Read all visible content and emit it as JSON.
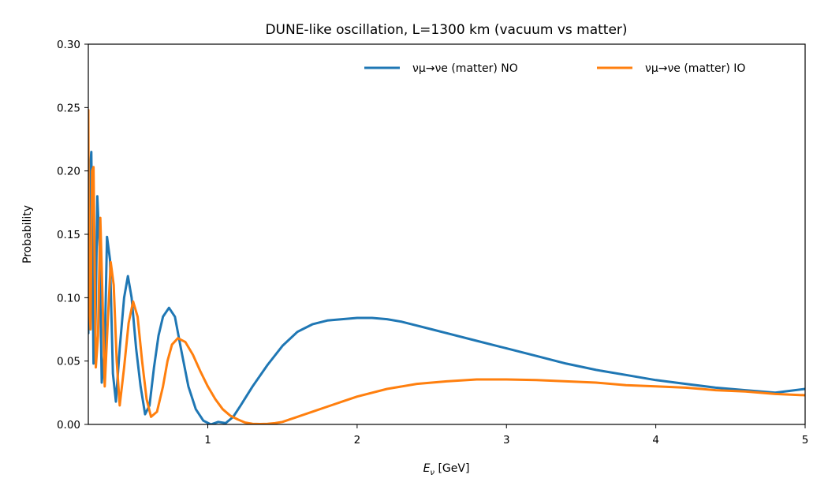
{
  "chart_data": {
    "type": "line",
    "title": "DUNE-like oscillation, L=1300 km (vacuum vs matter)",
    "xlabel": "E_ν [GeV]",
    "ylabel": "Probability",
    "xlim": [
      0.2,
      5
    ],
    "ylim": [
      0,
      0.3
    ],
    "xticks": [
      1,
      2,
      3,
      4,
      5
    ],
    "xtick_labels": [
      "1",
      "2",
      "3",
      "4",
      "5"
    ],
    "yticks": [
      0,
      0.05,
      0.1,
      0.15,
      0.2,
      0.25,
      0.3
    ],
    "ytick_labels": [
      "0.00",
      "0.05",
      "0.10",
      "0.15",
      "0.20",
      "0.25",
      "0.30"
    ],
    "grid": false,
    "legend_position": "top-right",
    "series": [
      {
        "name": "νμ→νe (matter) NO",
        "color": "#1f77b4",
        "x": [
          0.2,
          0.21,
          0.22,
          0.235,
          0.245,
          0.26,
          0.275,
          0.29,
          0.31,
          0.325,
          0.345,
          0.365,
          0.385,
          0.41,
          0.44,
          0.465,
          0.49,
          0.52,
          0.55,
          0.58,
          0.61,
          0.64,
          0.67,
          0.7,
          0.74,
          0.78,
          0.82,
          0.87,
          0.92,
          0.97,
          1.02,
          1.07,
          1.12,
          1.17,
          1.22,
          1.3,
          1.4,
          1.5,
          1.6,
          1.7,
          1.8,
          1.9,
          2.0,
          2.1,
          2.2,
          2.3,
          2.4,
          2.5,
          2.6,
          2.8,
          3.0,
          3.2,
          3.4,
          3.6,
          3.8,
          4.0,
          4.2,
          4.4,
          4.6,
          4.8,
          5.0
        ],
        "y": [
          0.072,
          0.2,
          0.215,
          0.048,
          0.05,
          0.18,
          0.14,
          0.033,
          0.06,
          0.148,
          0.13,
          0.04,
          0.018,
          0.06,
          0.1,
          0.117,
          0.1,
          0.06,
          0.03,
          0.008,
          0.015,
          0.045,
          0.07,
          0.085,
          0.092,
          0.085,
          0.06,
          0.03,
          0.012,
          0.003,
          0.0,
          0.002,
          0.001,
          0.006,
          0.015,
          0.03,
          0.047,
          0.062,
          0.073,
          0.079,
          0.082,
          0.083,
          0.084,
          0.084,
          0.083,
          0.081,
          0.078,
          0.075,
          0.072,
          0.066,
          0.06,
          0.054,
          0.048,
          0.043,
          0.039,
          0.035,
          0.032,
          0.029,
          0.027,
          0.025,
          0.028
        ]
      },
      {
        "name": "νμ→νe (matter) IO",
        "color": "#ff7f0e",
        "x": [
          0.2,
          0.205,
          0.215,
          0.225,
          0.235,
          0.25,
          0.265,
          0.28,
          0.295,
          0.31,
          0.33,
          0.35,
          0.37,
          0.39,
          0.41,
          0.44,
          0.47,
          0.5,
          0.53,
          0.56,
          0.59,
          0.62,
          0.66,
          0.7,
          0.73,
          0.76,
          0.8,
          0.85,
          0.9,
          0.95,
          1.0,
          1.05,
          1.1,
          1.15,
          1.2,
          1.25,
          1.3,
          1.35,
          1.4,
          1.45,
          1.5,
          1.55,
          1.6,
          1.7,
          1.8,
          1.9,
          2.0,
          2.2,
          2.4,
          2.6,
          2.8,
          3.0,
          3.2,
          3.4,
          3.6,
          3.8,
          4.0,
          4.2,
          4.4,
          4.6,
          4.8,
          5.0
        ],
        "y": [
          0.248,
          0.1,
          0.075,
          0.2,
          0.203,
          0.045,
          0.07,
          0.163,
          0.1,
          0.03,
          0.08,
          0.128,
          0.11,
          0.05,
          0.015,
          0.045,
          0.08,
          0.097,
          0.085,
          0.05,
          0.02,
          0.006,
          0.01,
          0.03,
          0.05,
          0.063,
          0.068,
          0.065,
          0.055,
          0.042,
          0.03,
          0.02,
          0.012,
          0.007,
          0.004,
          0.0015,
          0.0005,
          0.0003,
          0.0005,
          0.001,
          0.002,
          0.004,
          0.006,
          0.01,
          0.014,
          0.018,
          0.022,
          0.028,
          0.032,
          0.034,
          0.0355,
          0.0355,
          0.035,
          0.034,
          0.033,
          0.031,
          0.03,
          0.029,
          0.027,
          0.026,
          0.024,
          0.023
        ]
      }
    ]
  }
}
